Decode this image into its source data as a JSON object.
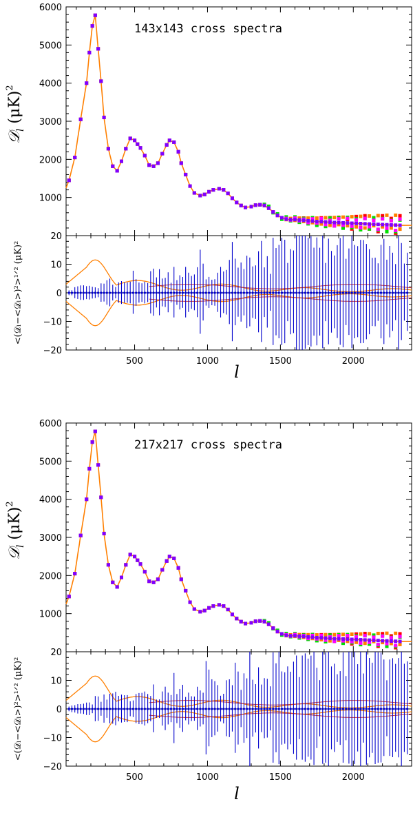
{
  "figure": {
    "description_free": true
  },
  "colors": {
    "model_curve": "#ff7f00",
    "error_bars": "#0000cc",
    "stripe_red": "#cc3333",
    "series": [
      "#ff0000",
      "#ff8000",
      "#00e000",
      "#ff00ff",
      "#8000ff"
    ]
  },
  "chart_data": [
    {
      "type": "scatter",
      "panel": "spectrum",
      "title": "143x143 cross spectra",
      "ylabel_main": "𝒟",
      "ylabel_sub": "l",
      "ylabel_unit": "(μK)",
      "ylabel_sup": "2",
      "xlim": [
        30,
        2400
      ],
      "ylim": [
        0,
        6000
      ],
      "yticks": [
        "1000",
        "2000",
        "3000",
        "4000",
        "5000",
        "6000"
      ],
      "x": [
        50,
        90,
        130,
        170,
        190,
        210,
        230,
        250,
        270,
        290,
        320,
        350,
        380,
        410,
        440,
        470,
        500,
        520,
        540,
        570,
        600,
        630,
        660,
        690,
        720,
        740,
        770,
        800,
        820,
        850,
        880,
        910,
        950,
        980,
        1010,
        1040,
        1080,
        1110,
        1140,
        1170,
        1200,
        1230,
        1260,
        1300,
        1330,
        1360,
        1390,
        1420,
        1450,
        1480,
        1510,
        1540,
        1570,
        1600,
        1630,
        1660,
        1690,
        1720,
        1750,
        1780,
        1810,
        1840,
        1870,
        1900,
        1930,
        1960,
        1990,
        2020,
        2050,
        2080,
        2110,
        2140,
        2170,
        2200,
        2230,
        2260,
        2290,
        2320
      ],
      "series": [
        {
          "name": "red",
          "offsets": [
            0,
            0,
            0,
            0,
            0,
            0,
            0,
            0,
            0,
            0,
            0,
            0,
            0,
            0,
            0,
            0,
            0,
            0,
            0,
            0,
            0,
            0,
            0,
            0,
            0,
            0,
            0,
            0,
            0,
            0,
            0,
            0,
            0,
            0,
            0,
            0,
            0,
            0,
            0,
            0,
            0,
            0,
            0,
            0,
            0,
            0,
            0,
            0,
            0,
            0,
            0,
            10,
            -20,
            30,
            -40,
            60,
            -50,
            80,
            -70,
            100,
            -90,
            120,
            -60,
            140,
            -110,
            90,
            -150,
            180,
            -100,
            210,
            -130,
            160,
            -190,
            230,
            -120,
            170,
            -210,
            250
          ]
        },
        {
          "name": "orange",
          "offsets": [
            0,
            0,
            0,
            0,
            0,
            0,
            0,
            0,
            0,
            0,
            0,
            0,
            0,
            0,
            0,
            0,
            0,
            0,
            0,
            0,
            0,
            0,
            0,
            0,
            0,
            0,
            0,
            0,
            0,
            0,
            0,
            0,
            0,
            0,
            0,
            0,
            0,
            0,
            0,
            0,
            0,
            0,
            0,
            0,
            0,
            0,
            0,
            0,
            0,
            0,
            0,
            -10,
            30,
            -20,
            50,
            -30,
            70,
            -40,
            90,
            -60,
            110,
            -80,
            130,
            -50,
            150,
            -70,
            170,
            -90,
            190,
            -110,
            210,
            -40,
            230,
            -60,
            250,
            -80,
            260,
            -100
          ]
        },
        {
          "name": "green",
          "offsets": [
            0,
            0,
            0,
            0,
            0,
            0,
            0,
            0,
            0,
            0,
            0,
            0,
            0,
            0,
            0,
            0,
            0,
            0,
            0,
            0,
            0,
            0,
            0,
            0,
            0,
            0,
            0,
            0,
            0,
            0,
            0,
            0,
            0,
            0,
            0,
            0,
            0,
            0,
            0,
            0,
            0,
            0,
            0,
            0,
            0,
            0,
            30,
            50,
            -20,
            40,
            -40,
            60,
            -30,
            70,
            -60,
            50,
            -80,
            90,
            -100,
            70,
            -120,
            110,
            -90,
            130,
            -140,
            150,
            -110,
            120,
            -160,
            140,
            -130,
            170,
            -150,
            160,
            -180,
            120,
            -170,
            140
          ]
        },
        {
          "name": "magenta",
          "offsets": [
            0,
            0,
            0,
            0,
            0,
            0,
            0,
            0,
            0,
            0,
            0,
            0,
            0,
            0,
            0,
            0,
            0,
            0,
            0,
            0,
            0,
            0,
            0,
            0,
            0,
            0,
            0,
            0,
            0,
            0,
            0,
            0,
            0,
            0,
            0,
            0,
            0,
            0,
            0,
            0,
            0,
            0,
            0,
            0,
            0,
            0,
            0,
            0,
            0,
            0,
            0,
            20,
            -10,
            40,
            -20,
            30,
            -50,
            60,
            -40,
            80,
            -70,
            50,
            -90,
            100,
            -60,
            120,
            -80,
            90,
            -110,
            140,
            -70,
            100,
            -130,
            150,
            -90,
            110,
            -140,
            160
          ]
        },
        {
          "name": "purple",
          "offsets": [
            0,
            0,
            0,
            0,
            0,
            0,
            0,
            0,
            0,
            0,
            0,
            0,
            0,
            0,
            0,
            0,
            0,
            0,
            0,
            0,
            0,
            0,
            0,
            0,
            0,
            0,
            0,
            0,
            0,
            0,
            0,
            0,
            0,
            0,
            0,
            0,
            0,
            0,
            0,
            0,
            0,
            0,
            0,
            0,
            0,
            0,
            0,
            0,
            0,
            0,
            0,
            0,
            0,
            0,
            0,
            0,
            0,
            0,
            0,
            0,
            0,
            0,
            0,
            0,
            0,
            0,
            0,
            0,
            0,
            0,
            0,
            0,
            0,
            0,
            0,
            0,
            0,
            0
          ]
        }
      ],
      "base_y": [
        1450,
        2050,
        3050,
        4000,
        4800,
        5500,
        5780,
        4900,
        4050,
        3100,
        2280,
        1820,
        1700,
        1950,
        2280,
        2550,
        2500,
        2400,
        2300,
        2100,
        1850,
        1820,
        1900,
        2150,
        2380,
        2500,
        2450,
        2200,
        1900,
        1600,
        1300,
        1120,
        1050,
        1080,
        1150,
        1200,
        1230,
        1200,
        1110,
        980,
        870,
        790,
        740,
        760,
        800,
        810,
        790,
        720,
        620,
        530,
        470,
        430,
        420,
        420,
        410,
        400,
        390,
        380,
        370,
        365,
        360,
        350,
        345,
        340,
        335,
        330,
        325,
        320,
        315,
        310,
        305,
        300,
        295,
        290,
        285,
        280,
        275,
        270
      ]
    },
    {
      "type": "line",
      "panel": "residual",
      "ylabel_text": "<(𝒟_l−<𝒟_l>)²>^1/2 (μK)²",
      "ylabel_display": "<(𝒟ₗ−<𝒟ₗ>)²>¹ᐟ² (μK)²",
      "xlim": [
        30,
        2400
      ],
      "ylim": [
        -20,
        20
      ],
      "yticks": [
        "−20",
        "−10",
        "0",
        "10",
        "20"
      ],
      "xticks": [
        "500",
        "1000",
        "1500",
        "2000"
      ],
      "xlabel": "l"
    },
    {
      "type": "scatter",
      "panel": "spectrum",
      "title": "217x217 cross spectra",
      "ylabel_main": "𝒟",
      "ylabel_sub": "l",
      "ylabel_unit": "(μK)",
      "ylabel_sup": "2",
      "xlim": [
        30,
        2400
      ],
      "ylim": [
        0,
        6000
      ],
      "yticks": [
        "1000",
        "2000",
        "3000",
        "4000",
        "5000",
        "6000"
      ]
    },
    {
      "type": "line",
      "panel": "residual",
      "ylabel_display": "<(𝒟ₗ−<𝒟ₗ>)²>¹ᐟ² (μK)²",
      "xlim": [
        30,
        2400
      ],
      "ylim": [
        -20,
        20
      ],
      "yticks": [
        "−20",
        "−10",
        "0",
        "10",
        "20"
      ],
      "xticks": [
        "500",
        "1000",
        "1500",
        "2000"
      ],
      "xlabel": "l"
    }
  ]
}
